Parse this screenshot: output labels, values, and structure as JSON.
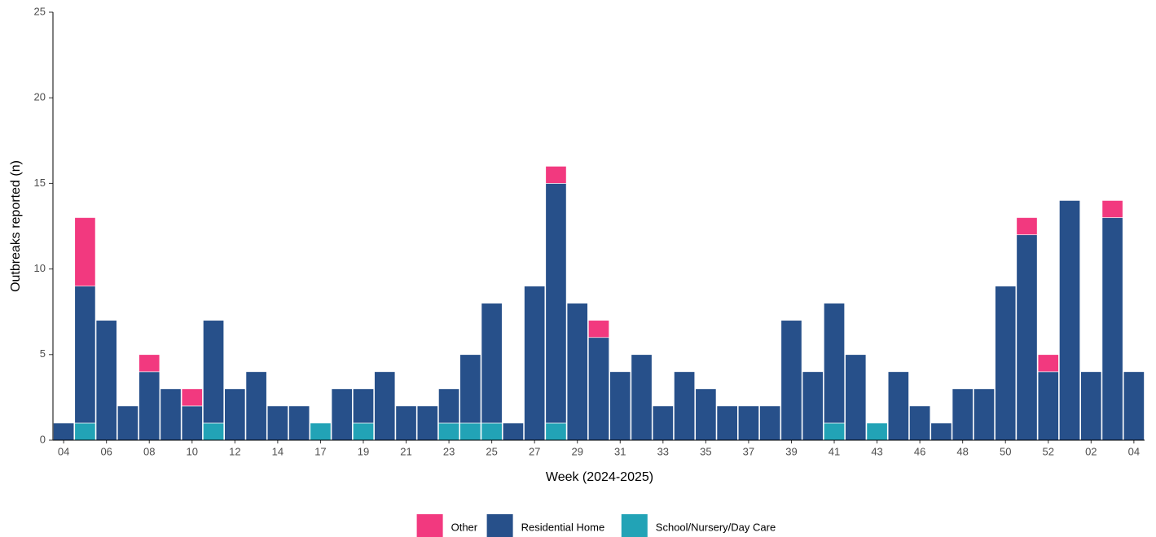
{
  "chart_data": {
    "type": "stacked_bar",
    "xlabel": "Week (2024-2025)",
    "ylabel": "Outbreaks reported (n)",
    "categories": [
      "04",
      null,
      "06",
      null,
      "08",
      null,
      "10",
      null,
      "12",
      null,
      "14",
      null,
      "17",
      null,
      "19",
      null,
      "21",
      null,
      "23",
      null,
      "25",
      null,
      "27",
      null,
      "29",
      null,
      "31",
      null,
      "33",
      null,
      "35",
      null,
      "37",
      null,
      "39",
      null,
      "41",
      null,
      "43",
      null,
      "46",
      null,
      "48",
      null,
      "50",
      null,
      "52",
      null,
      "02",
      null,
      "04"
    ],
    "series": [
      {
        "name": "Other",
        "color": "#f2397f",
        "values": [
          0,
          4,
          0,
          0,
          1,
          0,
          1,
          0,
          0,
          0,
          0,
          0,
          0,
          0,
          0,
          0,
          0,
          0,
          0,
          0,
          0,
          0,
          0,
          1,
          0,
          1,
          0,
          0,
          0,
          0,
          0,
          0,
          0,
          0,
          0,
          0,
          0,
          0,
          0,
          0,
          0,
          0,
          0,
          0,
          0,
          1,
          1,
          0,
          0,
          1,
          0
        ]
      },
      {
        "name": "Residential Home",
        "color": "#27508a",
        "values": [
          1,
          8,
          7,
          2,
          4,
          3,
          2,
          6,
          3,
          4,
          2,
          2,
          0,
          3,
          2,
          4,
          2,
          2,
          2,
          4,
          7,
          1,
          9,
          14,
          8,
          6,
          4,
          5,
          2,
          4,
          3,
          2,
          2,
          2,
          7,
          4,
          7,
          5,
          0,
          4,
          2,
          1,
          3,
          3,
          9,
          12,
          4,
          14,
          4,
          13,
          4
        ]
      },
      {
        "name": "School/Nursery/Day Care",
        "color": "#22a3b6",
        "values": [
          0,
          1,
          0,
          0,
          0,
          0,
          0,
          1,
          0,
          0,
          0,
          0,
          1,
          0,
          1,
          0,
          0,
          0,
          1,
          1,
          1,
          0,
          0,
          1,
          0,
          0,
          0,
          0,
          0,
          0,
          0,
          0,
          0,
          0,
          0,
          0,
          1,
          0,
          1,
          0,
          0,
          0,
          0,
          0,
          0,
          0,
          0,
          0,
          0,
          0,
          0
        ]
      }
    ],
    "ylim": [
      0,
      25
    ],
    "yticks": [
      0,
      5,
      10,
      15,
      20,
      25
    ],
    "grid": false,
    "legend": "bottom"
  }
}
